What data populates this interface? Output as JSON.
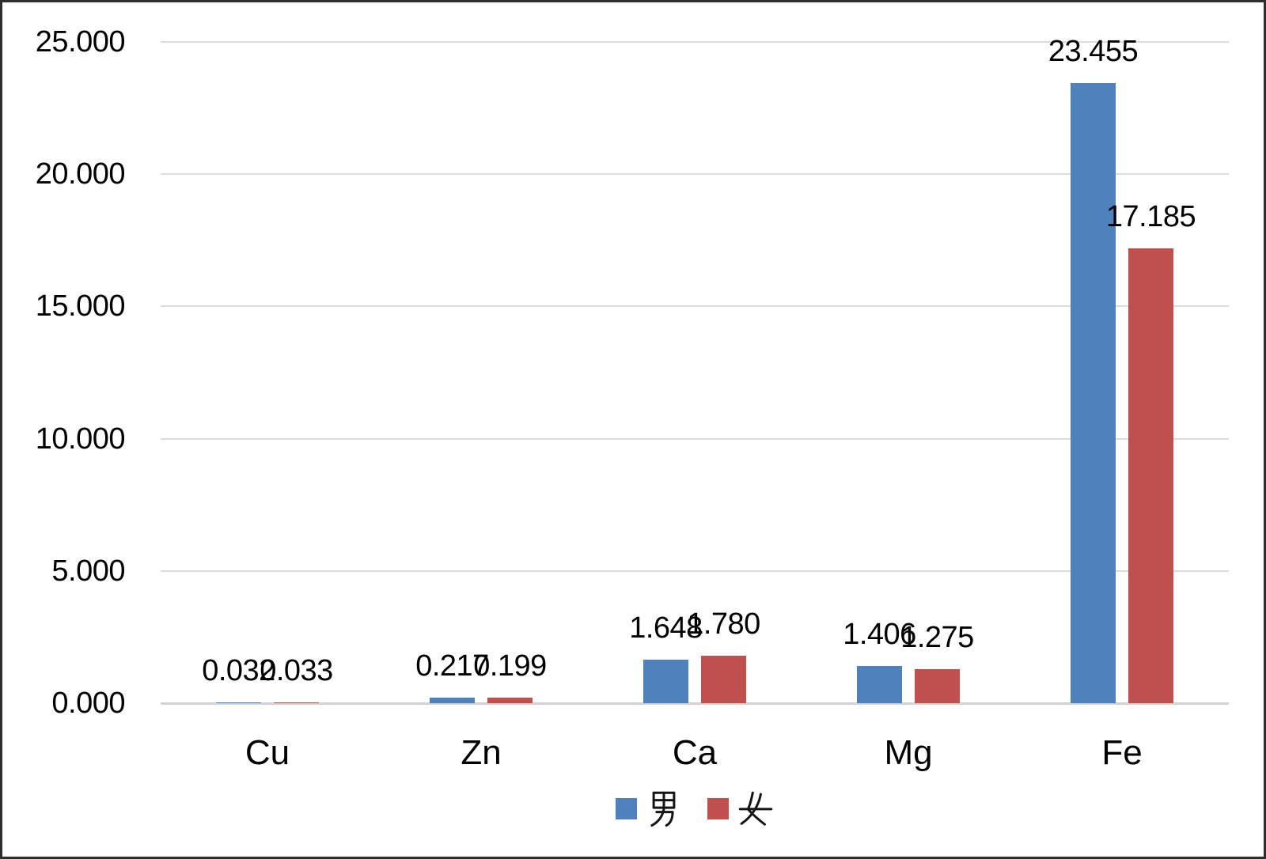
{
  "chart_data": {
    "type": "bar",
    "title": "",
    "xlabel": "",
    "ylabel": "",
    "categories": [
      "Cu",
      "Zn",
      "Ca",
      "Mg",
      "Fe"
    ],
    "series": [
      {
        "name": "男",
        "key": "male",
        "color": "#4F81BD",
        "values": [
          0.032,
          0.217,
          1.648,
          1.406,
          23.455
        ],
        "labels": [
          "0.032",
          "0.217",
          "1.648",
          "1.406",
          "23.455"
        ]
      },
      {
        "name": "女",
        "key": "female",
        "color": "#C0504D",
        "values": [
          0.033,
          0.199,
          1.78,
          1.275,
          17.185
        ],
        "labels": [
          "0.033",
          "0.199",
          "1.780",
          "1.275",
          "17.185"
        ]
      }
    ],
    "ylim": [
      0,
      25
    ],
    "yticks": [
      {
        "value": 0,
        "label": "0.000"
      },
      {
        "value": 5,
        "label": "5.000"
      },
      {
        "value": 10,
        "label": "10.000"
      },
      {
        "value": 15,
        "label": "15.000"
      },
      {
        "value": 20,
        "label": "20.000"
      },
      {
        "value": 25,
        "label": "25.000"
      }
    ],
    "grid": "horizontal",
    "legend_position": "bottom",
    "legend": [
      {
        "label": "男",
        "color": "#4F81BD"
      },
      {
        "label": "女",
        "color": "#C0504D"
      }
    ],
    "colors": {
      "gridline": "#DCDCDC",
      "axis_baseline": "#D2D2D2",
      "text": "#000000",
      "background": "#FFFFFF",
      "border": "#2E2E2E"
    }
  }
}
